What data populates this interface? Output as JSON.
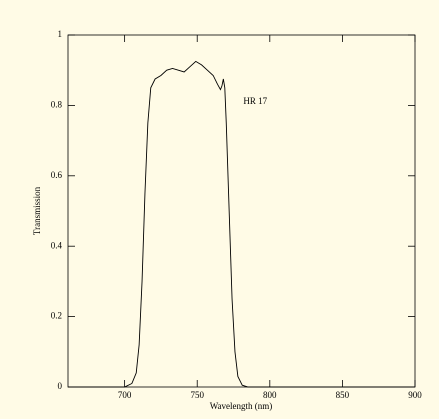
{
  "chart_data": {
    "type": "line",
    "xlabel": "Wavelength (nm)",
    "ylabel": "Transmission",
    "annotation": {
      "text": "HR 17",
      "x": 790,
      "y": 0.81
    },
    "x": [
      661,
      700,
      705,
      708,
      710,
      712,
      714,
      716,
      718,
      721,
      725,
      729,
      733,
      737,
      741,
      745,
      749,
      753,
      757,
      761,
      764,
      766,
      767,
      768,
      769,
      770,
      772,
      774,
      776,
      778,
      781,
      785,
      900
    ],
    "values": [
      0,
      0,
      0.01,
      0.04,
      0.12,
      0.3,
      0.55,
      0.75,
      0.85,
      0.875,
      0.885,
      0.9,
      0.905,
      0.9,
      0.895,
      0.91,
      0.925,
      0.915,
      0.9,
      0.885,
      0.86,
      0.845,
      0.855,
      0.875,
      0.85,
      0.75,
      0.5,
      0.25,
      0.1,
      0.03,
      0.005,
      0,
      0
    ],
    "color": "#000000",
    "xlim": [
      661,
      900
    ],
    "ylim": [
      0,
      1
    ],
    "xticks": [
      700,
      750,
      800,
      850,
      900
    ],
    "yticks": [
      0,
      0.2,
      0.4,
      0.6,
      0.8,
      1
    ],
    "grid": false
  }
}
